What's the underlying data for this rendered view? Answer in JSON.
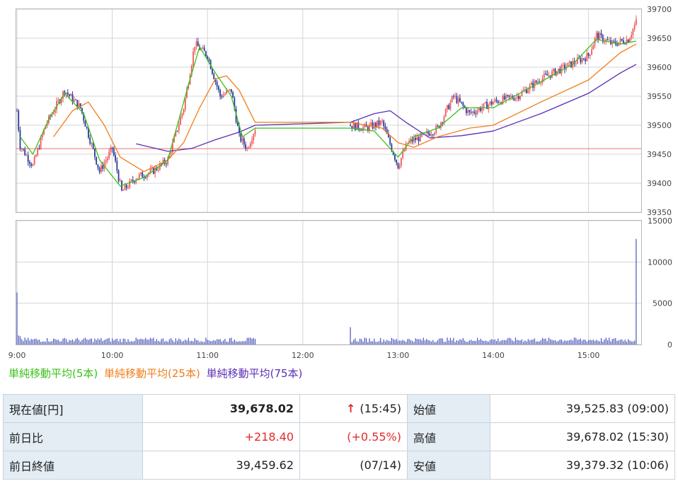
{
  "chart_data": [
    {
      "type": "candlestick",
      "title": "",
      "x_ticks": [
        "9:00",
        "10:00",
        "11:00",
        "12:00",
        "13:00",
        "14:00",
        "15:00"
      ],
      "y_ticks": [
        "39700",
        "39650",
        "39600",
        "39550",
        "39500",
        "39450",
        "39400",
        "39350"
      ],
      "ylim": [
        39350,
        39700
      ],
      "reference_line": 39459.62,
      "time_range": [
        "9:00",
        "15:30"
      ],
      "price_path": [
        [
          "9:00",
          39525
        ],
        [
          "9:02",
          39465
        ],
        [
          "9:10",
          39430
        ],
        [
          "9:18",
          39500
        ],
        [
          "9:30",
          39560
        ],
        [
          "9:40",
          39530
        ],
        [
          "9:52",
          39420
        ],
        [
          "10:00",
          39460
        ],
        [
          "10:06",
          39385
        ],
        [
          "10:15",
          39410
        ],
        [
          "10:25",
          39420
        ],
        [
          "10:35",
          39440
        ],
        [
          "10:45",
          39530
        ],
        [
          "10:52",
          39640
        ],
        [
          "11:00",
          39620
        ],
        [
          "11:08",
          39550
        ],
        [
          "11:15",
          39560
        ],
        [
          "11:20",
          39480
        ],
        [
          "11:25",
          39460
        ],
        [
          "11:30",
          39495
        ],
        [
          "12:30",
          39500
        ],
        [
          "12:40",
          39495
        ],
        [
          "12:50",
          39505
        ],
        [
          "13:00",
          39430
        ],
        [
          "13:06",
          39470
        ],
        [
          "13:15",
          39480
        ],
        [
          "13:25",
          39495
        ],
        [
          "13:35",
          39550
        ],
        [
          "13:45",
          39520
        ],
        [
          "14:00",
          39540
        ],
        [
          "14:15",
          39550
        ],
        [
          "14:30",
          39580
        ],
        [
          "14:45",
          39600
        ],
        [
          "15:00",
          39620
        ],
        [
          "15:05",
          39655
        ],
        [
          "15:15",
          39640
        ],
        [
          "15:25",
          39648
        ],
        [
          "15:30",
          39678
        ]
      ],
      "ma5_path": [
        [
          "9:02",
          39480
        ],
        [
          "9:10",
          39450
        ],
        [
          "9:20",
          39510
        ],
        [
          "9:30",
          39555
        ],
        [
          "9:42",
          39520
        ],
        [
          "9:52",
          39440
        ],
        [
          "10:05",
          39395
        ],
        [
          "10:20",
          39410
        ],
        [
          "10:35",
          39440
        ],
        [
          "10:48",
          39570
        ],
        [
          "10:55",
          39635
        ],
        [
          "11:05",
          39590
        ],
        [
          "11:15",
          39550
        ],
        [
          "11:22",
          39480
        ],
        [
          "11:30",
          39495
        ],
        [
          "12:30",
          39495
        ],
        [
          "12:45",
          39490
        ],
        [
          "13:00",
          39445
        ],
        [
          "13:10",
          39480
        ],
        [
          "13:25",
          39495
        ],
        [
          "13:40",
          39530
        ],
        [
          "14:00",
          39530
        ],
        [
          "14:30",
          39575
        ],
        [
          "14:50",
          39605
        ],
        [
          "15:05",
          39648
        ],
        [
          "15:20",
          39640
        ],
        [
          "15:30",
          39645
        ]
      ],
      "ma25_path": [
        [
          "9:23",
          39480
        ],
        [
          "9:35",
          39525
        ],
        [
          "9:45",
          39540
        ],
        [
          "9:55",
          39500
        ],
        [
          "10:05",
          39445
        ],
        [
          "10:20",
          39420
        ],
        [
          "10:35",
          39440
        ],
        [
          "10:45",
          39470
        ],
        [
          "10:55",
          39530
        ],
        [
          "11:05",
          39580
        ],
        [
          "11:12",
          39585
        ],
        [
          "11:20",
          39560
        ],
        [
          "11:30",
          39505
        ],
        [
          "12:30",
          39505
        ],
        [
          "12:50",
          39495
        ],
        [
          "13:00",
          39470
        ],
        [
          "13:10",
          39462
        ],
        [
          "13:25",
          39480
        ],
        [
          "13:45",
          39495
        ],
        [
          "14:00",
          39500
        ],
        [
          "14:30",
          39540
        ],
        [
          "15:00",
          39578
        ],
        [
          "15:20",
          39625
        ],
        [
          "15:30",
          39640
        ]
      ],
      "ma75_path": [
        [
          "10:15",
          39468
        ],
        [
          "10:35",
          39455
        ],
        [
          "10:50",
          39460
        ],
        [
          "11:05",
          39475
        ],
        [
          "11:20",
          39488
        ],
        [
          "11:30",
          39500
        ],
        [
          "12:30",
          39505
        ],
        [
          "12:45",
          39520
        ],
        [
          "12:55",
          39525
        ],
        [
          "13:05",
          39505
        ],
        [
          "13:20",
          39478
        ],
        [
          "13:40",
          39482
        ],
        [
          "14:00",
          39490
        ],
        [
          "14:30",
          39520
        ],
        [
          "15:00",
          39555
        ],
        [
          "15:20",
          39590
        ],
        [
          "15:30",
          39605
        ]
      ]
    },
    {
      "type": "bar",
      "title": "",
      "y_ticks": [
        "15000",
        "10000",
        "5000",
        "0"
      ],
      "ylim": [
        0,
        15000
      ],
      "spikes": [
        [
          "9:00",
          6300
        ],
        [
          "9:01",
          1100
        ],
        [
          "9:02",
          1000
        ],
        [
          "12:30",
          2100
        ],
        [
          "15:30",
          12800
        ]
      ],
      "baseline_volume": 600
    }
  ],
  "legend": {
    "ma5": "単純移動平均(5本)",
    "ma25": "単純移動平均(25本)",
    "ma75": "単純移動平均(75本)"
  },
  "colors": {
    "ma5": "#39c019",
    "ma25": "#f07d1a",
    "ma75": "#5a2db5",
    "candle_up": "#ee5a5a",
    "candle_down": "#2a3a9a",
    "volume": "#4854b8",
    "reference": "#f07070"
  },
  "quote": {
    "current_label": "現在値[円]",
    "current_value": "39,678.02",
    "current_arrow": "↑",
    "current_time": "(15:45)",
    "open_label": "始値",
    "open_value": "39,525.83 (09:00)",
    "change_label": "前日比",
    "change_value": "+218.40",
    "change_pct": "(+0.55%)",
    "high_label": "高値",
    "high_value": "39,678.02 (15:30)",
    "prev_close_label": "前日終値",
    "prev_close_value": "39,459.62",
    "prev_close_date": "(07/14)",
    "low_label": "安値",
    "low_value": "39,379.32 (10:06)"
  }
}
